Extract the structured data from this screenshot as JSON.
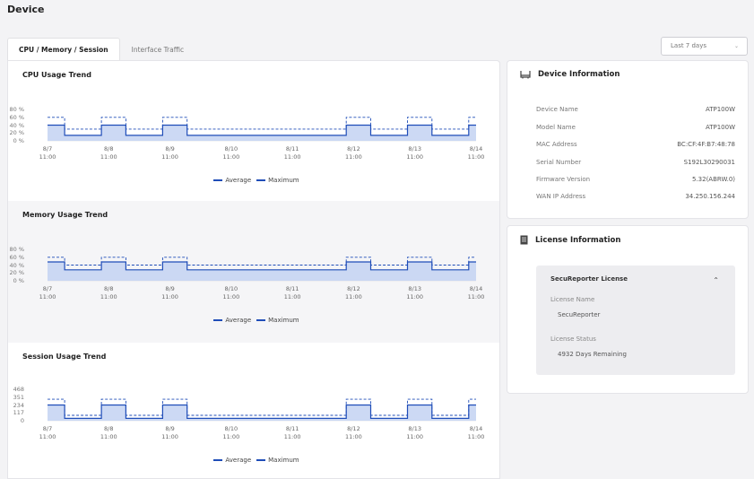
{
  "page": {
    "title": "Device"
  },
  "tabs": [
    {
      "label": "CPU / Memory / Session",
      "active": true
    },
    {
      "label": "Interface Traffic",
      "active": false
    }
  ],
  "range_select": {
    "value": "Last 7 days",
    "icon": "chevron-down-icon"
  },
  "colors": {
    "series": "#1f4db8",
    "fill": "#c3d2f2"
  },
  "legend": {
    "average": "Average",
    "maximum": "Maximum"
  },
  "x_dates": [
    "8/7",
    "8/8",
    "8/9",
    "8/10",
    "8/11",
    "8/12",
    "8/13",
    "8/14"
  ],
  "x_time": "11:00",
  "chart_data": [
    {
      "type": "area",
      "title": "CPU Usage Trend",
      "y_ticks": [
        "80 %",
        "60 %",
        "40 %",
        "20 %",
        "0 %"
      ],
      "ylim": [
        0,
        80
      ],
      "x": [
        "8/7 11:00",
        "8/8 11:00",
        "8/9 11:00",
        "8/10 11:00",
        "8/11 11:00",
        "8/12 11:00",
        "8/13 11:00",
        "8/14 11:00"
      ],
      "series": [
        {
          "name": "Average",
          "style": "solid",
          "high": 40,
          "low": 14
        },
        {
          "name": "Maximum",
          "style": "dashed",
          "high": 60,
          "low": 30
        }
      ],
      "high_periods": [
        [
          0,
          0.28
        ],
        [
          0.88,
          1.28
        ],
        [
          1.88,
          2.28
        ],
        [
          4.88,
          5.28
        ],
        [
          5.88,
          6.28
        ],
        [
          6.88,
          7.0
        ]
      ]
    },
    {
      "type": "area",
      "title": "Memory Usage Trend",
      "y_ticks": [
        "80 %",
        "60 %",
        "40 %",
        "20 %",
        "0 %"
      ],
      "ylim": [
        0,
        80
      ],
      "x": [
        "8/7 11:00",
        "8/8 11:00",
        "8/9 11:00",
        "8/10 11:00",
        "8/11 11:00",
        "8/12 11:00",
        "8/13 11:00",
        "8/14 11:00"
      ],
      "series": [
        {
          "name": "Average",
          "style": "solid",
          "high": 48,
          "low": 28
        },
        {
          "name": "Maximum",
          "style": "dashed",
          "high": 60,
          "low": 40
        }
      ],
      "high_periods": [
        [
          0,
          0.28
        ],
        [
          0.88,
          1.28
        ],
        [
          1.88,
          2.28
        ],
        [
          4.88,
          5.28
        ],
        [
          5.88,
          6.28
        ],
        [
          6.88,
          7.0
        ]
      ]
    },
    {
      "type": "area",
      "title": "Session Usage Trend",
      "y_ticks": [
        "468",
        "351",
        "234",
        "117",
        "0"
      ],
      "ylim": [
        0,
        468
      ],
      "x": [
        "8/7 11:00",
        "8/8 11:00",
        "8/9 11:00",
        "8/10 11:00",
        "8/11 11:00",
        "8/12 11:00",
        "8/13 11:00",
        "8/14 11:00"
      ],
      "series": [
        {
          "name": "Average",
          "style": "solid",
          "high": 234,
          "low": 35
        },
        {
          "name": "Maximum",
          "style": "dashed",
          "high": 320,
          "low": 80
        }
      ],
      "high_periods": [
        [
          0,
          0.28
        ],
        [
          0.88,
          1.28
        ],
        [
          1.88,
          2.28
        ],
        [
          4.88,
          5.28
        ],
        [
          5.88,
          6.28
        ],
        [
          6.88,
          7.0
        ]
      ]
    }
  ],
  "device_info": {
    "title": "Device Information",
    "icon": "router-icon",
    "rows": [
      {
        "label": "Device Name",
        "value": "ATP100W"
      },
      {
        "label": "Model Name",
        "value": "ATP100W"
      },
      {
        "label": "MAC Address",
        "value": "BC:CF:4F:B7:48:78"
      },
      {
        "label": "Serial Number",
        "value": "S192L30290031"
      },
      {
        "label": "Firmware Version",
        "value": "5.32(ABRW.0)"
      },
      {
        "label": "WAN IP Address",
        "value": "34.250.156.244"
      }
    ]
  },
  "license_info": {
    "title": "License Information",
    "icon": "document-icon",
    "license": {
      "header": "SecuReporter License",
      "caret_icon": "chevron-up-icon",
      "name_label": "License Name",
      "name_value": "SecuReporter",
      "status_label": "License Status",
      "status_value": "4932 Days Remaining"
    }
  }
}
